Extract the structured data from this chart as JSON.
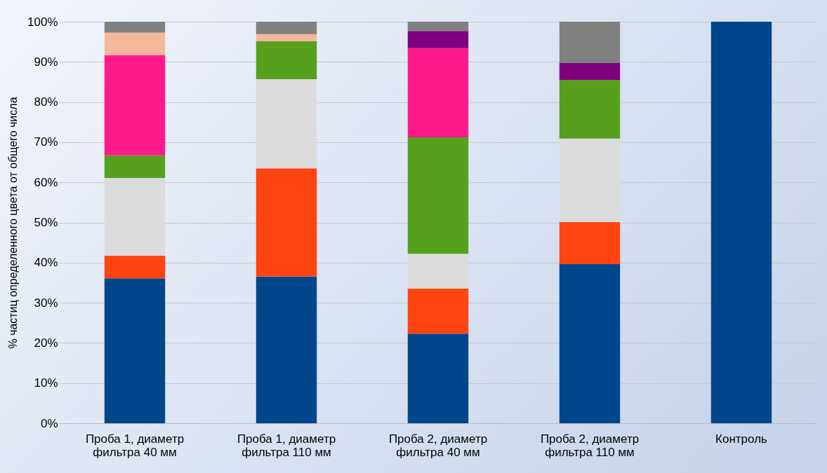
{
  "chart_data": {
    "type": "bar",
    "stacked": true,
    "categories": [
      "Проба 1, диаметр фильтра 40 мм",
      "Проба 1, диаметр фильтра 110 мм",
      "Проба 2, диаметр фильтра 40 мм",
      "Проба 2, диаметр фильтра 110 мм",
      "Контроль"
    ],
    "ylabel": "% частиц определенного цвета от общего числа",
    "series": [
      {
        "color": "#00468b",
        "values": [
          36.1,
          36.5,
          22.3,
          39.6,
          100
        ]
      },
      {
        "color": "#ff4411",
        "values": [
          5.6,
          27.0,
          11.2,
          10.5,
          null
        ]
      },
      {
        "color": "#dcdcdc",
        "values": [
          19.4,
          22.2,
          8.7,
          20.8,
          null
        ]
      },
      {
        "color": "#57a01e",
        "values": [
          5.6,
          9.4,
          29.0,
          14.6,
          null
        ]
      },
      {
        "color": "#ff1a8c",
        "values": [
          25.0,
          null,
          22.2,
          null,
          null
        ]
      },
      {
        "color": "#800080",
        "values": [
          null,
          null,
          4.3,
          4.2,
          null
        ]
      },
      {
        "color": "#f4b89a",
        "values": [
          5.6,
          1.8,
          null,
          null,
          null
        ]
      },
      {
        "color": "#808080",
        "values": [
          2.7,
          3.1,
          2.3,
          10.3,
          null
        ]
      }
    ],
    "ylim": [
      0,
      100
    ],
    "yticks": [
      {
        "value": 0,
        "label": "0%"
      },
      {
        "value": 10,
        "label": "10%"
      },
      {
        "value": 20,
        "label": "20%"
      },
      {
        "value": 30,
        "label": "30%"
      },
      {
        "value": 40,
        "label": "40%"
      },
      {
        "value": 50,
        "label": "50%"
      },
      {
        "value": 60,
        "label": "60%"
      },
      {
        "value": 70,
        "label": "70%"
      },
      {
        "value": 80,
        "label": "80%"
      },
      {
        "value": 90,
        "label": "90%"
      },
      {
        "value": 100,
        "label": "100%"
      }
    ],
    "grid": "y"
  }
}
